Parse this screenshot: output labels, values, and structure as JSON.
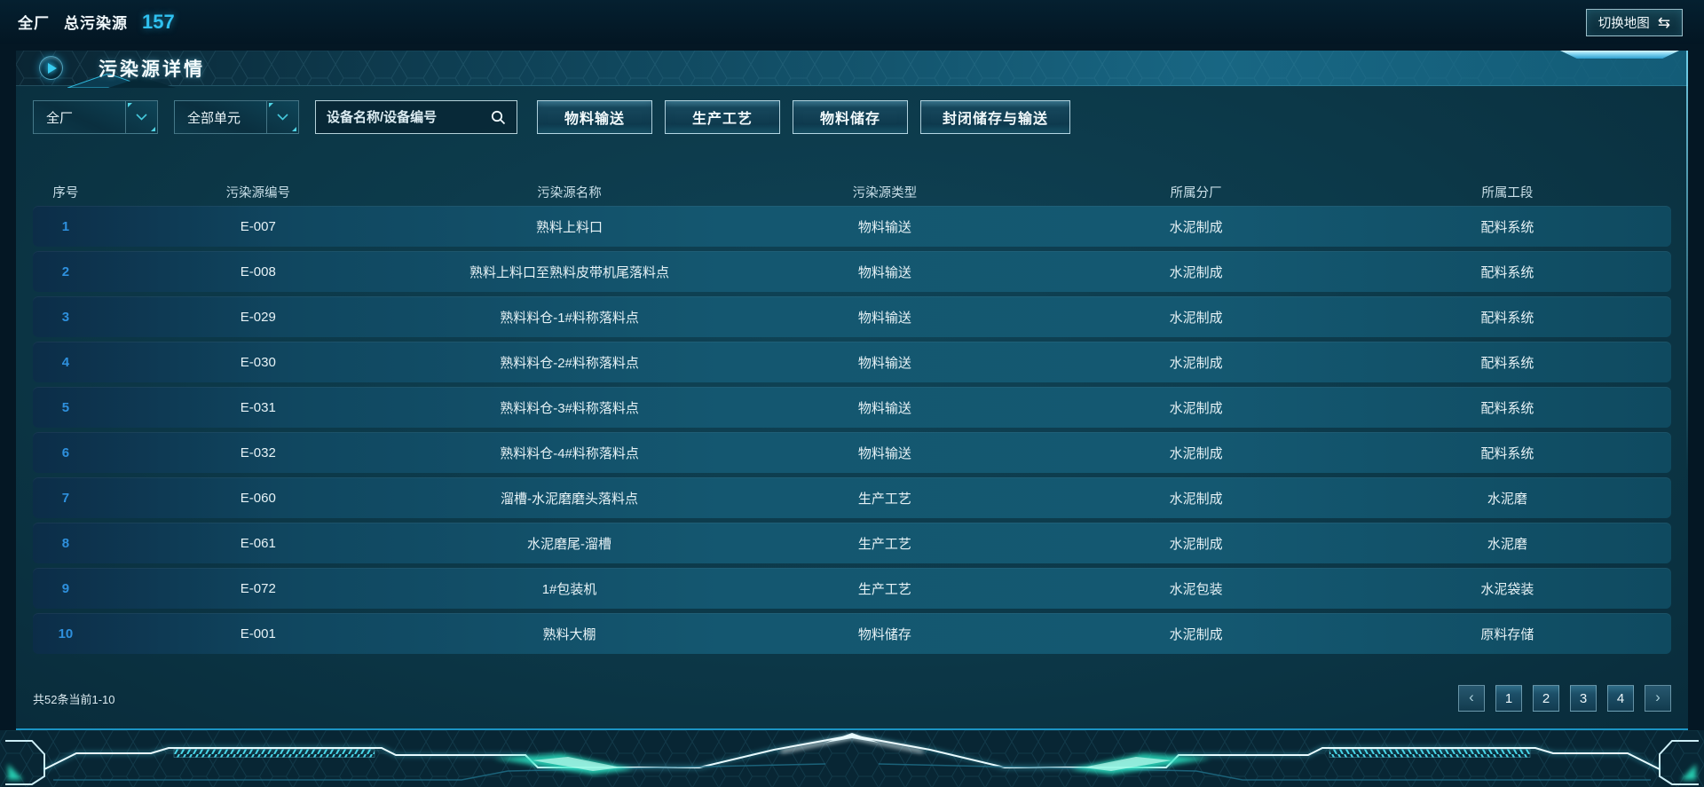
{
  "top_bar": {
    "plant_label": "全厂",
    "total_label": "总污染源",
    "total_value": "157",
    "switch_map_label": "切换地图"
  },
  "icons": {
    "switch_map_swap": "⇆",
    "page_prev": "‹",
    "page_next": "›",
    "panel_title_icon": "play-circle",
    "select_icon": "chevron-down",
    "search_icon": "magnifier"
  },
  "panel": {
    "title": "污染源详情",
    "filters": {
      "plant_select_value": "全厂",
      "unit_select_value": "全部单元",
      "search_placeholder": "设备名称/设备编号",
      "type_buttons": [
        "物料输送",
        "生产工艺",
        "物料储存",
        "封闭储存与输送"
      ]
    },
    "table": {
      "columns": [
        "序号",
        "污染源编号",
        "污染源名称",
        "污染源类型",
        "所属分厂",
        "所属工段"
      ],
      "rows": [
        [
          "1",
          "E-007",
          "熟料上料口",
          "物料输送",
          "水泥制成",
          "配料系统"
        ],
        [
          "2",
          "E-008",
          "熟料上料口至熟料皮带机尾落料点",
          "物料输送",
          "水泥制成",
          "配料系统"
        ],
        [
          "3",
          "E-029",
          "熟料料仓-1#料称落料点",
          "物料输送",
          "水泥制成",
          "配料系统"
        ],
        [
          "4",
          "E-030",
          "熟料料仓-2#料称落料点",
          "物料输送",
          "水泥制成",
          "配料系统"
        ],
        [
          "5",
          "E-031",
          "熟料料仓-3#料称落料点",
          "物料输送",
          "水泥制成",
          "配料系统"
        ],
        [
          "6",
          "E-032",
          "熟料料仓-4#料称落料点",
          "物料输送",
          "水泥制成",
          "配料系统"
        ],
        [
          "7",
          "E-060",
          "溜槽-水泥磨磨头落料点",
          "生产工艺",
          "水泥制成",
          "水泥磨"
        ],
        [
          "8",
          "E-061",
          "水泥磨尾-溜槽",
          "生产工艺",
          "水泥制成",
          "水泥磨"
        ],
        [
          "9",
          "E-072",
          "1#包装机",
          "生产工艺",
          "水泥包装",
          "水泥袋装"
        ],
        [
          "10",
          "E-001",
          "熟料大棚",
          "物料储存",
          "水泥制成",
          "原料存储"
        ]
      ]
    },
    "pagination": {
      "summary": "共52条当前1-10",
      "pages": [
        "1",
        "2",
        "3",
        "4"
      ]
    }
  },
  "colors": {
    "accent_cyan": "#2fc1f0",
    "link_blue": "#2e90dd",
    "panel_edge_cyan": "#1b94c4",
    "glow_teal": "#2ae9c6",
    "row_teal": "#145770",
    "background": "#041724"
  }
}
